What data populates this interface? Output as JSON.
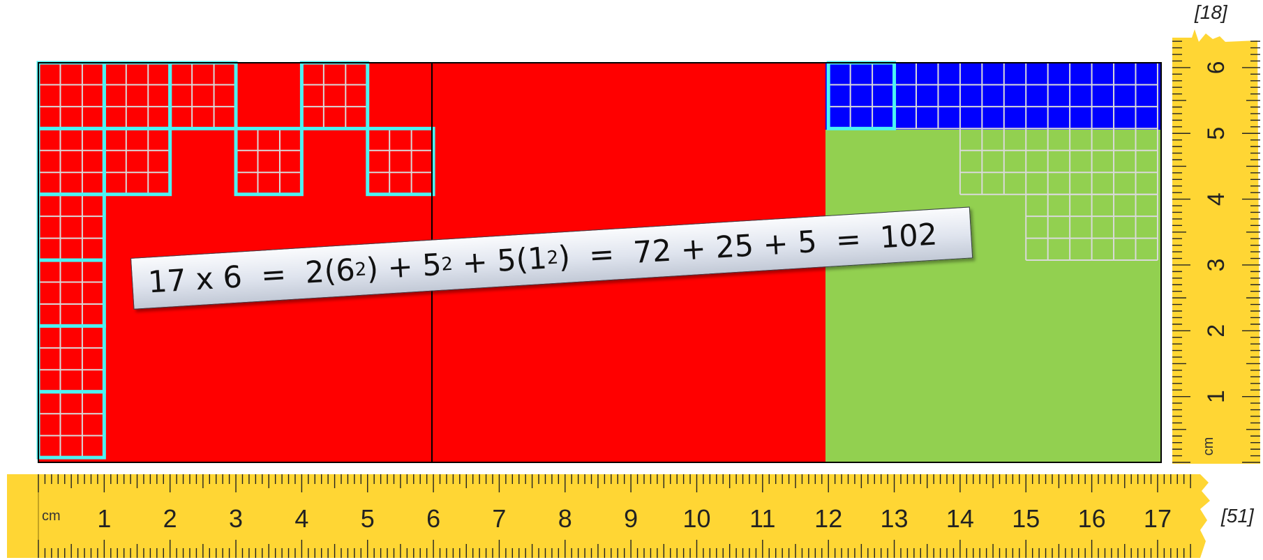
{
  "refs": {
    "top": "[18]",
    "right": "[51]"
  },
  "equation": {
    "lhs": "17 x 6",
    "eq": "=",
    "term1_coef": "2",
    "term1_base": "6",
    "term2_base": "5",
    "term3_coef": "5",
    "term3_base": "1",
    "exp": "2",
    "plus": "+",
    "sum_text": "72 + 25 + 5",
    "result": "102"
  },
  "colors": {
    "red": "#ff0000",
    "green": "#92d050",
    "blue": "#0000ff",
    "cyan": "#4cf3f3",
    "ruler_yellow": "#ffd634",
    "grid_light": "#d9d9d9"
  },
  "ruler_h": {
    "unit": "cm",
    "labels": [
      "1",
      "2",
      "3",
      "4",
      "5",
      "6",
      "7",
      "8",
      "9",
      "10",
      "11",
      "12",
      "13",
      "14",
      "15",
      "16",
      "17"
    ]
  },
  "ruler_v": {
    "unit": "cm",
    "labels": [
      "1",
      "2",
      "3",
      "4",
      "5",
      "6"
    ]
  }
}
